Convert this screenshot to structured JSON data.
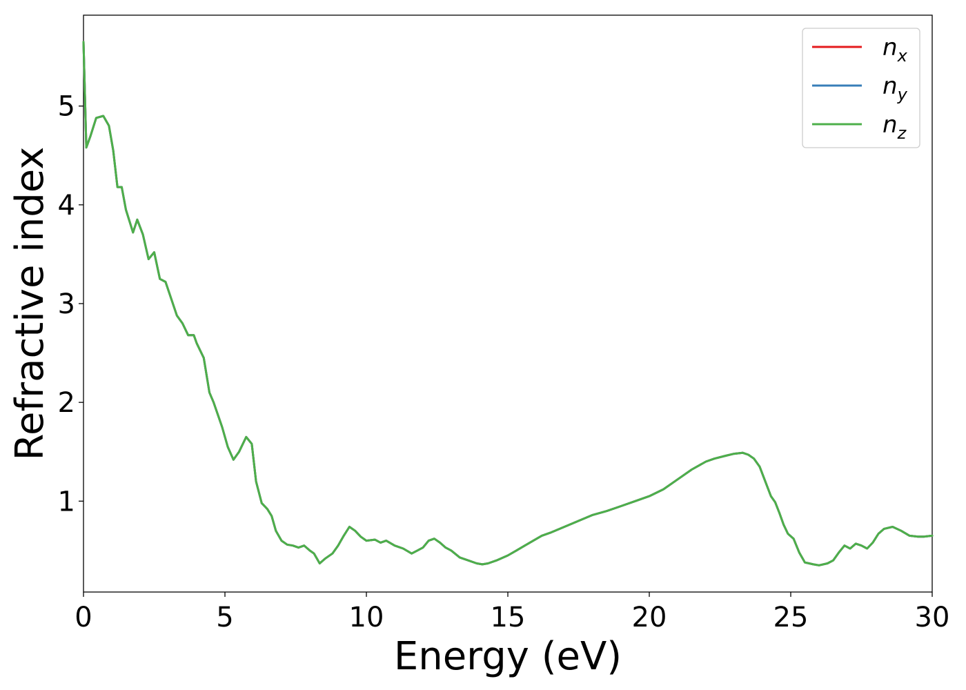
{
  "chart_data": {
    "type": "line",
    "xlabel": "Energy (eV)",
    "ylabel": "Refractive index",
    "xlim": [
      0,
      30
    ],
    "ylim": [
      0.08,
      5.92
    ],
    "xticks": [
      0,
      5,
      10,
      15,
      20,
      25,
      30
    ],
    "xtick_labels": [
      "0",
      "5",
      "10",
      "15",
      "20",
      "25",
      "30"
    ],
    "yticks": [
      1,
      2,
      3,
      4,
      5
    ],
    "ytick_labels": [
      "1",
      "2",
      "3",
      "4",
      "5"
    ],
    "grid": false,
    "legend_position": "top-right",
    "series": [
      {
        "name": "n",
        "subscript": "x",
        "color": "#e41a1c"
      },
      {
        "name": "n",
        "subscript": "y",
        "color": "#377eb8"
      },
      {
        "name": "n",
        "subscript": "z",
        "color": "#4daf4a"
      }
    ],
    "x": [
      0,
      0.1,
      0.25,
      0.45,
      0.7,
      0.9,
      1.05,
      1.2,
      1.35,
      1.5,
      1.75,
      1.9,
      2.1,
      2.3,
      2.5,
      2.7,
      2.9,
      3.1,
      3.3,
      3.5,
      3.7,
      3.9,
      4.0,
      4.25,
      4.45,
      4.6,
      4.9,
      5.1,
      5.3,
      5.5,
      5.75,
      5.95,
      6.1,
      6.3,
      6.5,
      6.65,
      6.8,
      7.0,
      7.2,
      7.4,
      7.6,
      7.8,
      8.0,
      8.15,
      8.35,
      8.55,
      8.8,
      9.0,
      9.2,
      9.4,
      9.6,
      9.8,
      10.0,
      10.3,
      10.5,
      10.7,
      11.0,
      11.3,
      11.6,
      11.8,
      12.0,
      12.2,
      12.4,
      12.6,
      12.8,
      13.0,
      13.3,
      13.6,
      13.9,
      14.1,
      14.3,
      14.6,
      15.0,
      15.3,
      15.6,
      15.9,
      16.2,
      16.5,
      17.0,
      17.5,
      18.0,
      18.5,
      19.0,
      19.5,
      20.0,
      20.5,
      21.0,
      21.5,
      22.0,
      22.3,
      22.7,
      23.0,
      23.3,
      23.5,
      23.7,
      23.9,
      24.1,
      24.3,
      24.45,
      24.6,
      24.75,
      24.9,
      25.1,
      25.3,
      25.5,
      25.8,
      26.0,
      26.3,
      26.5,
      26.7,
      26.9,
      27.1,
      27.3,
      27.5,
      27.7,
      27.9,
      28.1,
      28.3,
      28.6,
      28.9,
      29.2,
      29.5,
      29.7,
      30.0
    ],
    "values": [
      5.65,
      4.58,
      4.7,
      4.88,
      4.9,
      4.8,
      4.55,
      4.18,
      4.18,
      3.95,
      3.72,
      3.85,
      3.7,
      3.45,
      3.52,
      3.25,
      3.22,
      3.05,
      2.88,
      2.8,
      2.68,
      2.68,
      2.6,
      2.45,
      2.1,
      2.0,
      1.75,
      1.55,
      1.42,
      1.5,
      1.65,
      1.58,
      1.2,
      0.98,
      0.92,
      0.85,
      0.7,
      0.6,
      0.56,
      0.55,
      0.53,
      0.55,
      0.5,
      0.47,
      0.37,
      0.42,
      0.47,
      0.55,
      0.65,
      0.74,
      0.7,
      0.64,
      0.6,
      0.61,
      0.58,
      0.6,
      0.55,
      0.52,
      0.47,
      0.5,
      0.53,
      0.6,
      0.62,
      0.58,
      0.53,
      0.5,
      0.43,
      0.4,
      0.37,
      0.36,
      0.37,
      0.4,
      0.45,
      0.5,
      0.55,
      0.6,
      0.65,
      0.68,
      0.74,
      0.8,
      0.86,
      0.9,
      0.95,
      1.0,
      1.05,
      1.12,
      1.22,
      1.32,
      1.4,
      1.43,
      1.46,
      1.48,
      1.49,
      1.47,
      1.43,
      1.35,
      1.2,
      1.05,
      0.99,
      0.88,
      0.76,
      0.67,
      0.62,
      0.48,
      0.38,
      0.36,
      0.35,
      0.37,
      0.4,
      0.48,
      0.55,
      0.52,
      0.57,
      0.55,
      0.52,
      0.58,
      0.67,
      0.72,
      0.74,
      0.7,
      0.65,
      0.64,
      0.64,
      0.65
    ]
  }
}
